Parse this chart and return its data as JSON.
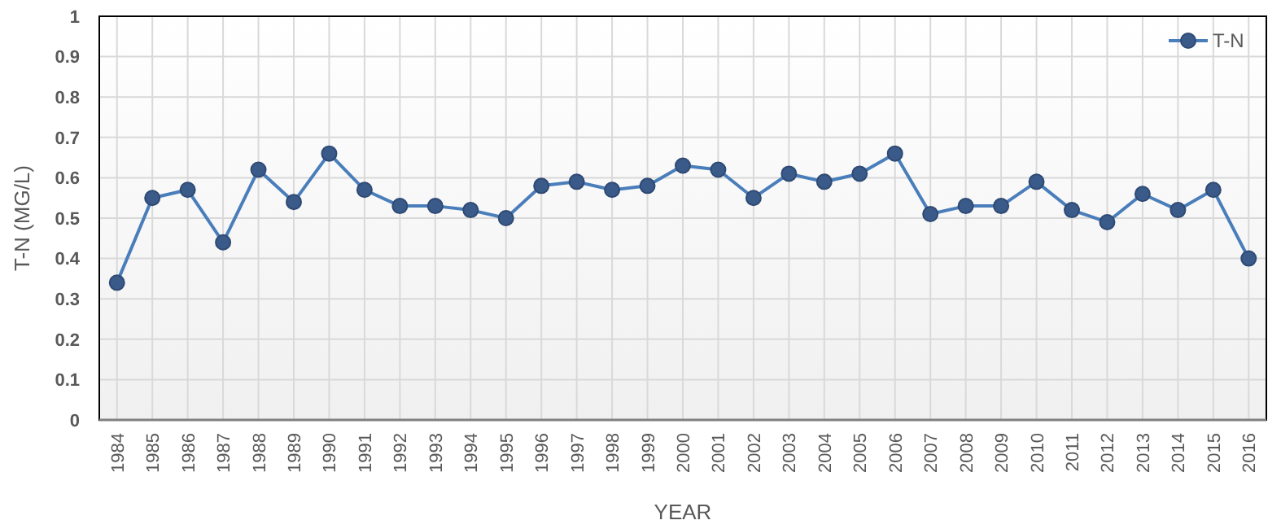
{
  "chart_data": {
    "type": "line",
    "xlabel": "YEAR",
    "ylabel": "T-N (MG/L)",
    "categories": [
      "1984",
      "1985",
      "1986",
      "1987",
      "1988",
      "1989",
      "1990",
      "1991",
      "1992",
      "1993",
      "1994",
      "1995",
      "1996",
      "1997",
      "1998",
      "1999",
      "2000",
      "2001",
      "2002",
      "2003",
      "2004",
      "2005",
      "2006",
      "2007",
      "2008",
      "2009",
      "2010",
      "2011",
      "2012",
      "2013",
      "2014",
      "2015",
      "2016"
    ],
    "series": [
      {
        "name": "T-N",
        "color": "#4a7ebb",
        "values": [
          0.34,
          0.55,
          0.57,
          0.44,
          0.62,
          0.54,
          0.66,
          0.57,
          0.53,
          0.53,
          0.52,
          0.5,
          0.58,
          0.59,
          0.57,
          0.58,
          0.63,
          0.62,
          0.55,
          0.61,
          0.59,
          0.61,
          0.66,
          0.51,
          0.53,
          0.53,
          0.59,
          0.52,
          0.49,
          0.56,
          0.52,
          0.57,
          0.4
        ]
      }
    ],
    "ylim": [
      0,
      1
    ],
    "yticks": [
      0,
      0.1,
      0.2,
      0.3,
      0.4,
      0.5,
      0.6,
      0.7,
      0.8,
      0.9,
      1
    ],
    "grid": true,
    "legend": "top right",
    "marker": "circle",
    "line_style": "solid"
  }
}
